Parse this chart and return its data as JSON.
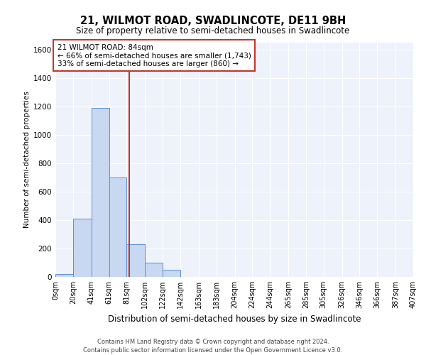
{
  "title1": "21, WILMOT ROAD, SWADLINCOTE, DE11 9BH",
  "title2": "Size of property relative to semi-detached houses in Swadlincote",
  "xlabel": "Distribution of semi-detached houses by size in Swadlincote",
  "ylabel": "Number of semi-detached properties",
  "footer1": "Contains HM Land Registry data © Crown copyright and database right 2024.",
  "footer2": "Contains public sector information licensed under the Open Government Licence v3.0.",
  "annotation_line1": "21 WILMOT ROAD: 84sqm",
  "annotation_line2": "← 66% of semi-detached houses are smaller (1,743)",
  "annotation_line3": "33% of semi-detached houses are larger (860) →",
  "property_size": 84,
  "bin_edges": [
    0,
    20,
    41,
    61,
    81,
    102,
    122,
    142,
    163,
    183,
    204,
    224,
    244,
    265,
    285,
    305,
    326,
    346,
    366,
    387,
    407
  ],
  "bar_heights": [
    20,
    410,
    1190,
    700,
    230,
    100,
    50,
    0,
    0,
    0,
    0,
    0,
    0,
    0,
    0,
    0,
    0,
    0,
    0,
    0
  ],
  "bar_color": "#c8d8f0",
  "bar_edge_color": "#5b8fd4",
  "vline_color": "#c0392b",
  "vline_x": 84,
  "annotation_box_color": "#c0392b",
  "background_color": "#eef2fb",
  "ylim": [
    0,
    1650
  ],
  "yticks": [
    0,
    200,
    400,
    600,
    800,
    1000,
    1200,
    1400,
    1600
  ],
  "xlim": [
    0,
    407
  ],
  "tick_labels": [
    "0sqm",
    "20sqm",
    "41sqm",
    "61sqm",
    "81sqm",
    "102sqm",
    "122sqm",
    "142sqm",
    "163sqm",
    "183sqm",
    "204sqm",
    "224sqm",
    "244sqm",
    "265sqm",
    "285sqm",
    "305sqm",
    "326sqm",
    "346sqm",
    "366sqm",
    "387sqm",
    "407sqm"
  ],
  "title1_fontsize": 10.5,
  "title2_fontsize": 8.5,
  "ylabel_fontsize": 7.5,
  "xlabel_fontsize": 8.5,
  "footer_fontsize": 6,
  "tick_fontsize": 7,
  "ytick_fontsize": 7.5,
  "annot_fontsize": 7.5
}
